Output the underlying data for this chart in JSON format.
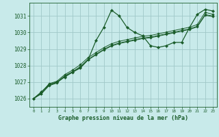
{
  "background_color": "#c8eaea",
  "grid_color": "#a0c8c8",
  "line_color": "#1a5c2a",
  "title": "Graphe pression niveau de la mer (hPa)",
  "xlim": [
    -0.5,
    23.5
  ],
  "ylim": [
    1025.5,
    1031.8
  ],
  "yticks": [
    1026,
    1027,
    1028,
    1029,
    1030,
    1031
  ],
  "xticks": [
    0,
    1,
    2,
    3,
    4,
    5,
    6,
    7,
    8,
    9,
    10,
    11,
    12,
    13,
    14,
    15,
    16,
    17,
    18,
    19,
    20,
    21,
    22,
    23
  ],
  "series": [
    [
      1026.0,
      1026.4,
      1026.85,
      1027.0,
      1027.3,
      1027.6,
      1027.85,
      1028.35,
      1029.5,
      1030.3,
      1031.35,
      1031.0,
      1030.3,
      1030.0,
      1029.8,
      1029.2,
      1029.1,
      1029.2,
      1029.4,
      1029.4,
      1030.3,
      1031.1,
      1031.4,
      1031.3
    ],
    [
      1026.0,
      1026.35,
      1026.9,
      1027.05,
      1027.45,
      1027.72,
      1028.05,
      1028.48,
      1028.78,
      1029.08,
      1029.32,
      1029.47,
      1029.57,
      1029.67,
      1029.77,
      1029.82,
      1029.92,
      1030.02,
      1030.12,
      1030.22,
      1030.32,
      1030.48,
      1031.22,
      1031.1
    ],
    [
      1026.0,
      1026.3,
      1026.82,
      1026.98,
      1027.38,
      1027.63,
      1027.93,
      1028.38,
      1028.68,
      1028.98,
      1029.22,
      1029.37,
      1029.47,
      1029.57,
      1029.67,
      1029.72,
      1029.82,
      1029.92,
      1030.02,
      1030.12,
      1030.22,
      1030.38,
      1031.08,
      1031.0
    ],
    [
      1026.0,
      1026.28,
      1026.78,
      1026.94,
      1027.34,
      1027.59,
      1027.89,
      1028.34,
      1028.64,
      1028.94,
      1029.18,
      1029.33,
      1029.43,
      1029.53,
      1029.63,
      1029.68,
      1029.78,
      1029.88,
      1029.98,
      1030.08,
      1030.18,
      1030.34,
      1031.04,
      1030.96
    ]
  ]
}
